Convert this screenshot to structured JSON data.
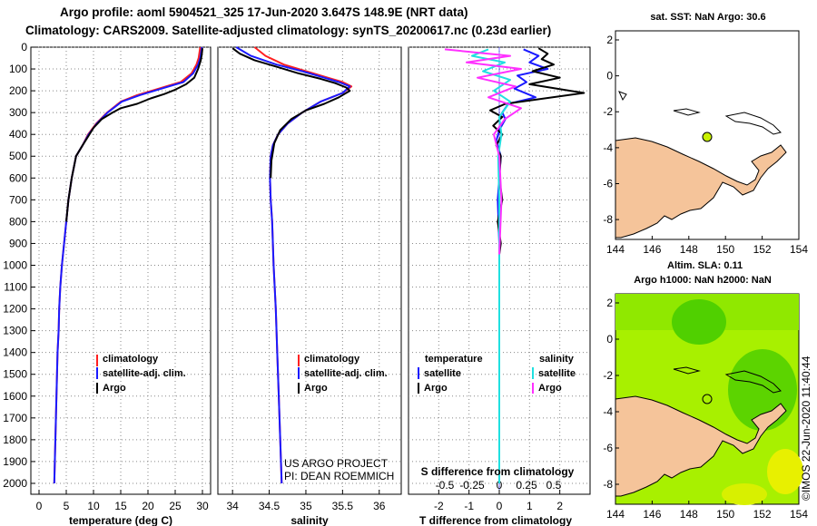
{
  "header": {
    "line1": "Argo profile: aoml 5904521_325 17-Jun-2020 3.647S 148.9E (NRT data)",
    "line2": "Climatology: CARS2009. Satellite-adjusted climatology: synTS_20200617.nc (0.23d earlier)"
  },
  "colors": {
    "climatology": "#ff2020",
    "satellite": "#1a1aff",
    "argo": "#000000",
    "sat_salinity": "#20e0e0",
    "argo_salinity": "#ff30ff",
    "land": "#f5c49a",
    "marker": "#c8f000",
    "map_green_light": "#a8f000",
    "map_green": "#50d000",
    "map_yellow": "#e8f000"
  },
  "chart_data": [
    {
      "type": "line",
      "title": "",
      "xlabel": "temperature (deg C)",
      "ylabel": "",
      "xlim": [
        -1.5,
        31.5
      ],
      "ylim": [
        2050,
        0
      ],
      "xticks": [
        "0",
        "5",
        "10",
        "15",
        "20",
        "25",
        "30"
      ],
      "yticks": [
        "0",
        "100",
        "200",
        "300",
        "400",
        "500",
        "600",
        "700",
        "800",
        "900",
        "1000",
        "1100",
        "1200",
        "1300",
        "1400",
        "1500",
        "1600",
        "1700",
        "1800",
        "1900",
        "2000"
      ],
      "legend": {
        "placement": "lower-right",
        "items": [
          "climatology",
          "satellite-adj. clim.",
          "Argo"
        ]
      },
      "series": [
        {
          "name": "climatology",
          "color_key": "climatology",
          "x": [
            29.6,
            29.3,
            28.9,
            28.0,
            26.0,
            22.0,
            18.0,
            15.0,
            12.5,
            10.5,
            9.0,
            8.0,
            6.8,
            6.0,
            5.4,
            5.0,
            4.6,
            4.2,
            3.9,
            3.7,
            3.6,
            3.4,
            3.3,
            3.2,
            3.1,
            3.0,
            2.9,
            2.8
          ],
          "depth": [
            0,
            50,
            80,
            120,
            160,
            190,
            220,
            250,
            300,
            350,
            400,
            450,
            500,
            600,
            700,
            800,
            900,
            1000,
            1100,
            1200,
            1300,
            1400,
            1500,
            1600,
            1700,
            1800,
            1900,
            2000
          ]
        },
        {
          "name": "satellite-adj. clim.",
          "color_key": "satellite",
          "x": [
            29.9,
            29.6,
            29.2,
            28.3,
            26.5,
            22.5,
            18.5,
            15.2,
            12.6,
            10.6,
            9.1,
            8.0,
            6.8,
            6.0,
            5.4,
            5.0,
            4.6,
            4.2,
            3.9,
            3.7,
            3.6,
            3.4,
            3.3,
            3.2,
            3.1,
            3.0,
            2.9,
            2.8
          ],
          "depth": [
            0,
            50,
            80,
            120,
            160,
            190,
            220,
            250,
            300,
            350,
            400,
            450,
            500,
            600,
            700,
            800,
            900,
            1000,
            1100,
            1200,
            1300,
            1400,
            1500,
            1600,
            1700,
            1800,
            1900,
            2000
          ]
        },
        {
          "name": "Argo",
          "color_key": "argo",
          "x": [
            30.0,
            29.9,
            29.7,
            29.2,
            28.5,
            27.0,
            25.0,
            23.0,
            20.5,
            18.0,
            15.0,
            13.5,
            11.5,
            10.0,
            9.0,
            8.0,
            6.8,
            6.0,
            5.4,
            5.0
          ],
          "depth": [
            5,
            30,
            60,
            100,
            140,
            170,
            195,
            215,
            235,
            260,
            280,
            300,
            330,
            370,
            410,
            450,
            500,
            600,
            700,
            800
          ]
        }
      ]
    },
    {
      "type": "line",
      "title": "",
      "xlabel": "salinity",
      "ylabel": "",
      "xlim": [
        33.8,
        36.3
      ],
      "ylim": [
        2050,
        0
      ],
      "xticks": [
        "34",
        "34.5",
        "35",
        "35.5",
        "36"
      ],
      "legend": {
        "placement": "lower-right",
        "items": [
          "climatology",
          "satellite-adj. clim.",
          "Argo"
        ]
      },
      "footer_text": [
        "US ARGO PROJECT",
        "PI: DEAN ROEMMICH"
      ],
      "series": [
        {
          "name": "climatology",
          "color_key": "climatology",
          "x": [
            34.3,
            34.45,
            34.7,
            35.0,
            35.3,
            35.5,
            35.62,
            35.5,
            35.2,
            34.95,
            34.75,
            34.62,
            34.55,
            34.52,
            34.51,
            34.52,
            34.54,
            34.56,
            34.59,
            34.61,
            34.63,
            34.65,
            34.66,
            34.67
          ],
          "depth": [
            0,
            40,
            80,
            110,
            140,
            160,
            180,
            210,
            250,
            300,
            350,
            400,
            450,
            500,
            600,
            700,
            800,
            1000,
            1200,
            1400,
            1600,
            1800,
            1900,
            2000
          ]
        },
        {
          "name": "satellite-adj. clim.",
          "color_key": "satellite",
          "x": [
            34.05,
            34.25,
            34.6,
            34.95,
            35.25,
            35.45,
            35.6,
            35.5,
            35.2,
            34.95,
            34.75,
            34.62,
            34.55,
            34.52,
            34.51,
            34.52,
            34.54,
            34.56,
            34.59,
            34.61,
            34.63,
            34.65,
            34.66,
            34.67
          ],
          "depth": [
            0,
            40,
            80,
            110,
            140,
            160,
            180,
            210,
            250,
            300,
            350,
            400,
            450,
            500,
            600,
            700,
            800,
            1000,
            1200,
            1400,
            1600,
            1800,
            1900,
            2000
          ]
        },
        {
          "name": "Argo",
          "color_key": "argo",
          "x": [
            34.0,
            34.1,
            34.3,
            34.6,
            34.9,
            35.2,
            35.4,
            35.55,
            35.6,
            35.45,
            35.25,
            35.0,
            34.8,
            34.65,
            34.57,
            34.53,
            34.52
          ],
          "depth": [
            5,
            30,
            60,
            90,
            120,
            145,
            165,
            185,
            200,
            230,
            260,
            290,
            330,
            380,
            440,
            520,
            600
          ]
        }
      ]
    },
    {
      "type": "line",
      "title": "",
      "xlabel": "T difference from climatology",
      "xlabel_top": "S difference from climatology",
      "ylabel": "",
      "xlim": [
        -3,
        3
      ],
      "ylim": [
        2050,
        0
      ],
      "xticks": [
        "-2",
        "-1",
        "0",
        "1",
        "2"
      ],
      "xticks_salinity": [
        "-0.5",
        "-0.25",
        "0",
        "0.25",
        "0.5"
      ],
      "legend": {
        "placement": "lower",
        "temp_header": "temperature",
        "sal_header": "salinity",
        "items": [
          "satellite",
          "Argo",
          "satellite",
          "Argo"
        ]
      },
      "series": [
        {
          "name": "temperature satellite",
          "color_key": "satellite",
          "x": [
            0.8,
            1.3,
            1.0,
            1.6,
            0.6,
            0.9,
            0.5,
            1.2,
            0.3,
            0.1,
            0.2,
            0.0,
            -0.1,
            0.05,
            0.0,
            -0.05,
            0.0
          ],
          "depth": [
            10,
            40,
            70,
            100,
            130,
            160,
            190,
            230,
            260,
            300,
            330,
            380,
            430,
            500,
            600,
            700,
            900
          ]
        },
        {
          "name": "temperature Argo",
          "color_key": "argo",
          "x": [
            1.3,
            1.6,
            1.4,
            1.8,
            1.1,
            2.0,
            1.0,
            2.8,
            0.2,
            -0.3,
            0.1,
            -0.2,
            0.1,
            -0.1,
            0.05,
            0.0,
            0.1,
            -0.05,
            0.05,
            0.0
          ],
          "depth": [
            5,
            30,
            55,
            80,
            110,
            140,
            170,
            210,
            260,
            290,
            320,
            360,
            400,
            450,
            500,
            600,
            700,
            800,
            900,
            950
          ]
        },
        {
          "name": "salinity satellite",
          "color_key": "sat_salinity",
          "x": [
            -0.1,
            -0.25,
            0.05,
            -0.15,
            0.1,
            -0.05,
            0.1,
            0.0,
            0.02,
            -0.01,
            0.0,
            0.0,
            0.0,
            0.0
          ],
          "depth": [
            10,
            40,
            70,
            110,
            150,
            200,
            250,
            320,
            400,
            500,
            700,
            1000,
            1500,
            2000
          ]
        },
        {
          "name": "salinity Argo",
          "color_key": "argo_salinity",
          "x": [
            -0.5,
            0.1,
            -0.3,
            0.2,
            -0.2,
            0.15,
            -0.1,
            0.2,
            0.05,
            -0.05,
            0.0,
            0.02,
            0.0
          ],
          "depth": [
            10,
            40,
            70,
            100,
            140,
            180,
            230,
            280,
            330,
            400,
            500,
            700,
            950
          ]
        }
      ]
    }
  ],
  "maps": {
    "sst": {
      "title": "sat. SST: NaN Argo: 30.6",
      "xticks": [
        "144",
        "146",
        "148",
        "150",
        "152",
        "154"
      ],
      "yticks": [
        "2",
        "0",
        "-2",
        "-4",
        "-6",
        "-8"
      ]
    },
    "sla": {
      "title1": "Altim. SLA: 0.11",
      "title2": "Argo h1000: NaN h2000: NaN",
      "xticks": [
        "144",
        "146",
        "148",
        "150",
        "152",
        "154"
      ],
      "yticks": [
        "2",
        "0",
        "-2",
        "-4",
        "-6",
        "-8"
      ]
    }
  },
  "footer": {
    "stamp": "©IMOS 22-Jun-2020 11:40:44"
  }
}
